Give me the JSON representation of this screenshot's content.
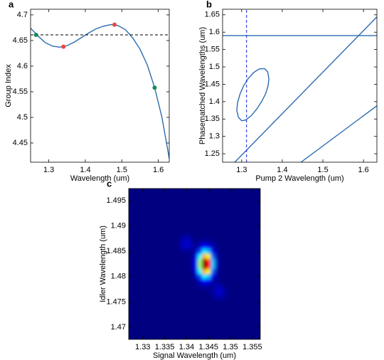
{
  "chart_data": [
    {
      "type": "line",
      "panel_label": "a",
      "xlabel": "Wavelength (um)",
      "ylabel": "Group Index",
      "xlim": [
        1.25,
        1.63
      ],
      "ylim": [
        4.4125,
        4.711
      ],
      "xticks": [
        1.3,
        1.4,
        1.5,
        1.6
      ],
      "yticks": [
        4.45,
        4.5,
        4.55,
        4.6,
        4.65,
        4.7
      ],
      "series": [
        {
          "style": "solid",
          "color": "#2b6cb0",
          "x": [
            1.25,
            1.27,
            1.29,
            1.31,
            1.33,
            1.35,
            1.37,
            1.39,
            1.41,
            1.43,
            1.45,
            1.47,
            1.49,
            1.51,
            1.53,
            1.55,
            1.57,
            1.59,
            1.61,
            1.63
          ],
          "values": [
            4.674,
            4.659,
            4.646,
            4.639,
            4.637,
            4.64,
            4.647,
            4.656,
            4.665,
            4.673,
            4.678,
            4.681,
            4.679,
            4.671,
            4.655,
            4.633,
            4.602,
            4.558,
            4.5,
            4.42
          ]
        },
        {
          "style": "dashed",
          "color": "#000000",
          "x": [
            1.25,
            1.63
          ],
          "values": [
            4.661,
            4.661
          ]
        },
        {
          "style": "markers",
          "color": "#e8493f",
          "x": [
            1.34,
            1.48
          ],
          "values": [
            4.638,
            4.681
          ]
        },
        {
          "style": "markers",
          "color": "#1a8a5a",
          "x": [
            1.265,
            1.59
          ],
          "values": [
            4.661,
            4.558
          ]
        }
      ]
    },
    {
      "type": "line",
      "panel_label": "b",
      "xlabel": "Pump 2 Wavelength (um)",
      "ylabel": "Phasematched Wavelengths (um)",
      "xlim": [
        1.253,
        1.633
      ],
      "ylim": [
        1.2256,
        1.666
      ],
      "xticks": [
        1.3,
        1.4,
        1.5,
        1.6
      ],
      "yticks": [
        1.25,
        1.3,
        1.35,
        1.4,
        1.45,
        1.5,
        1.55,
        1.6,
        1.65
      ],
      "series": [
        {
          "style": "solid",
          "color": "#2b6cb0",
          "x": [
            1.253,
            1.633
          ],
          "values": [
            1.59,
            1.59
          ]
        },
        {
          "style": "solid",
          "color": "#2b6cb0",
          "x": [
            1.283,
            1.633
          ],
          "values": [
            1.2256,
            1.644
          ]
        },
        {
          "style": "solid",
          "color": "#2b6cb0",
          "x": [
            1.446,
            1.633
          ],
          "values": [
            1.2256,
            1.388
          ]
        },
        {
          "style": "solid",
          "color": "#2b6cb0",
          "x": [
            1.3,
            1.292,
            1.288,
            1.29,
            1.296,
            1.305,
            1.317,
            1.33,
            1.343,
            1.356,
            1.364,
            1.367,
            1.365,
            1.359,
            1.35,
            1.338,
            1.324,
            1.31,
            1.3
          ],
          "values": [
            1.345,
            1.355,
            1.375,
            1.398,
            1.422,
            1.446,
            1.468,
            1.484,
            1.494,
            1.495,
            1.486,
            1.466,
            1.445,
            1.423,
            1.402,
            1.38,
            1.36,
            1.347,
            1.345
          ]
        },
        {
          "style": "dashed",
          "color": "#2233dd",
          "x": [
            1.312,
            1.312
          ],
          "values": [
            1.2256,
            1.666
          ]
        }
      ]
    },
    {
      "type": "heatmap",
      "panel_label": "c",
      "xlabel": "Signal Wavelength (um)",
      "ylabel": "Idler Wavelength (um)",
      "xlim": [
        1.3268,
        1.3568
      ],
      "ylim": [
        1.4676,
        1.4974
      ],
      "xticks": [
        1.33,
        1.335,
        1.34,
        1.345,
        1.35,
        1.355
      ],
      "yticks": [
        1.47,
        1.475,
        1.48,
        1.485,
        1.49,
        1.495
      ],
      "colormap": "jet",
      "x": [
        1.338,
        1.339,
        1.34,
        1.341,
        1.342,
        1.343,
        1.344,
        1.345,
        1.346,
        1.347,
        1.348,
        1.349,
        1.35,
        1.351
      ],
      "y": [
        1.491,
        1.49,
        1.489,
        1.488,
        1.487,
        1.486,
        1.485,
        1.484,
        1.483,
        1.482,
        1.481,
        1.48,
        1.479,
        1.478,
        1.477,
        1.476,
        1.475,
        1.474
      ],
      "z": [
        [
          0,
          0,
          0,
          0,
          0,
          0,
          0,
          0,
          0,
          0,
          0,
          0,
          0,
          0
        ],
        [
          0,
          0,
          0,
          0,
          0,
          0,
          0,
          0,
          0,
          0,
          0,
          0,
          0,
          0
        ],
        [
          0,
          0,
          0,
          0,
          0,
          0,
          0,
          0,
          0,
          0,
          0,
          0,
          0,
          0
        ],
        [
          0,
          0.02,
          0.03,
          0.01,
          0,
          0,
          0,
          0,
          0,
          0,
          0,
          0,
          0,
          0
        ],
        [
          0,
          0.05,
          0.07,
          0.04,
          0,
          0.02,
          0.03,
          0.02,
          0.01,
          0,
          0,
          0,
          0,
          0
        ],
        [
          0,
          0.05,
          0.07,
          0.05,
          0.01,
          0.06,
          0.12,
          0.1,
          0.04,
          0.01,
          0,
          0,
          0,
          0
        ],
        [
          0,
          0.01,
          0.02,
          0.01,
          0.04,
          0.17,
          0.33,
          0.28,
          0.1,
          0.02,
          0,
          0,
          0,
          0
        ],
        [
          0,
          0,
          0,
          0.01,
          0.08,
          0.34,
          0.65,
          0.56,
          0.2,
          0.03,
          0,
          0,
          0,
          0
        ],
        [
          0,
          0,
          0,
          0.01,
          0.11,
          0.48,
          0.92,
          0.79,
          0.29,
          0.05,
          0,
          0,
          0,
          0
        ],
        [
          0,
          0,
          0,
          0.01,
          0.11,
          0.48,
          0.92,
          0.79,
          0.29,
          0.05,
          0,
          0,
          0,
          0
        ],
        [
          0,
          0,
          0,
          0.01,
          0.08,
          0.34,
          0.65,
          0.56,
          0.2,
          0.03,
          0,
          0,
          0,
          0
        ],
        [
          0,
          0,
          0,
          0,
          0.04,
          0.17,
          0.33,
          0.28,
          0.1,
          0.02,
          0,
          0,
          0,
          0
        ],
        [
          0,
          0,
          0,
          0,
          0.01,
          0.06,
          0.12,
          0.1,
          0.04,
          0.01,
          0,
          0,
          0,
          0
        ],
        [
          0,
          0,
          0,
          0,
          0,
          0.02,
          0.03,
          0.02,
          0.02,
          0.05,
          0.04,
          0,
          0,
          0
        ],
        [
          0,
          0,
          0,
          0,
          0,
          0,
          0,
          0.01,
          0.03,
          0.07,
          0.06,
          0.02,
          0,
          0
        ],
        [
          0,
          0,
          0,
          0,
          0,
          0,
          0,
          0,
          0.01,
          0.04,
          0.04,
          0.01,
          0,
          0
        ],
        [
          0,
          0,
          0,
          0,
          0,
          0,
          0,
          0,
          0,
          0,
          0,
          0,
          0,
          0
        ],
        [
          0,
          0,
          0,
          0,
          0,
          0,
          0,
          0,
          0,
          0,
          0,
          0,
          0,
          0
        ]
      ]
    }
  ]
}
